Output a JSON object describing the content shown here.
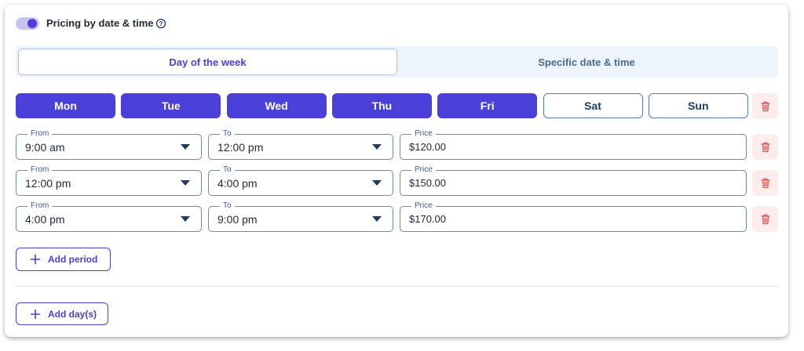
{
  "header": {
    "title": "Pricing by date & time",
    "toggle_on": true
  },
  "tabs": [
    {
      "label": "Day of the week",
      "active": true
    },
    {
      "label": "Specific date & time",
      "active": false
    }
  ],
  "days": [
    {
      "label": "Mon",
      "selected": true
    },
    {
      "label": "Tue",
      "selected": true
    },
    {
      "label": "Wed",
      "selected": true
    },
    {
      "label": "Thu",
      "selected": true
    },
    {
      "label": "Fri",
      "selected": true
    },
    {
      "label": "Sat",
      "selected": false
    },
    {
      "label": "Sun",
      "selected": false
    }
  ],
  "periods": [
    {
      "from": {
        "label": "From",
        "value": "9:00 am"
      },
      "to": {
        "label": "To",
        "value": "12:00 pm"
      },
      "price": {
        "label": "Price",
        "value": "$120.00"
      }
    },
    {
      "from": {
        "label": "From",
        "value": "12:00 pm"
      },
      "to": {
        "label": "To",
        "value": "4:00 pm"
      },
      "price": {
        "label": "Price",
        "value": "$150.00"
      }
    },
    {
      "from": {
        "label": "From",
        "value": "4:00 pm"
      },
      "to": {
        "label": "To",
        "value": "9:00 pm"
      },
      "price": {
        "label": "Price",
        "value": "$170.00"
      }
    }
  ],
  "buttons": {
    "add_period": "Add period",
    "add_days": "Add day(s)"
  }
}
